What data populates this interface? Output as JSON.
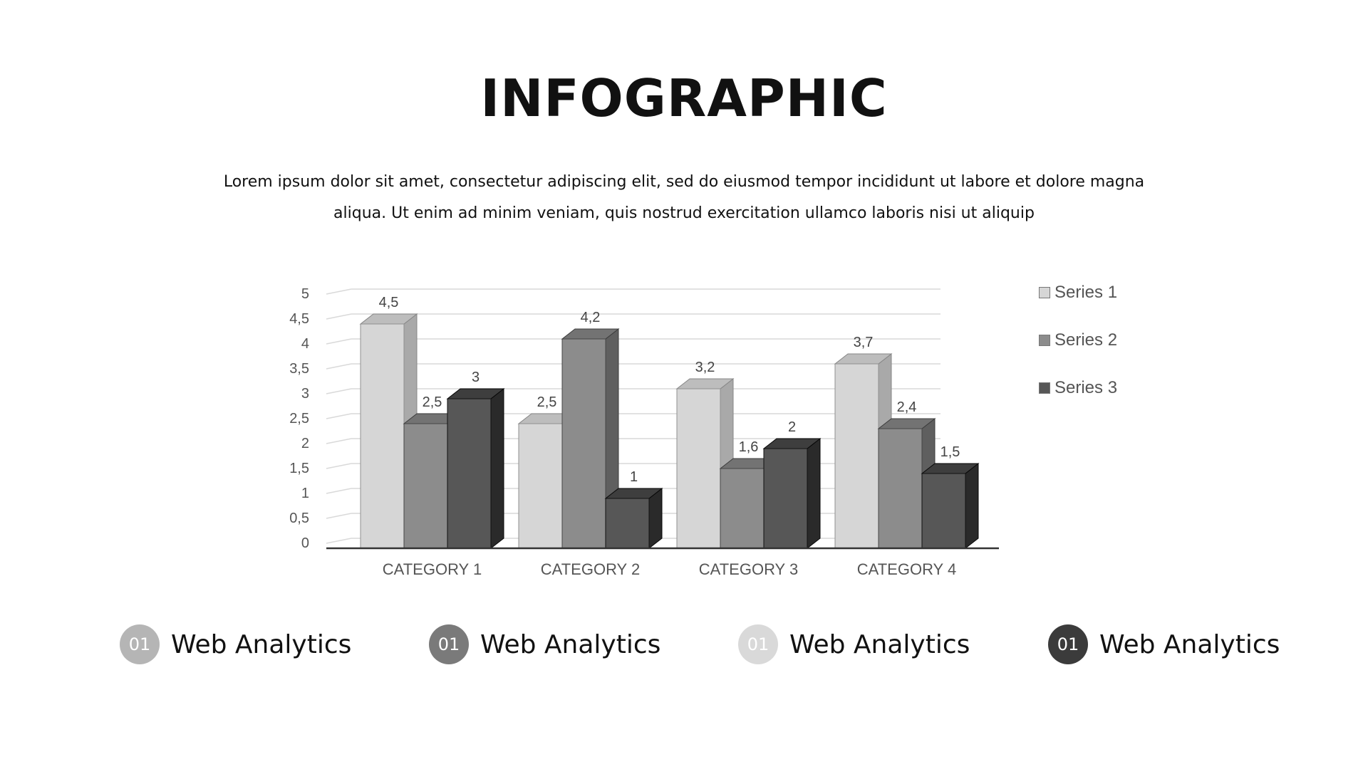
{
  "header": {
    "title": "INFOGRAPHIC",
    "subtitle": "Lorem ipsum dolor sit amet, consectetur adipiscing elit, sed do eiusmod tempor incididunt ut labore et dolore magna aliqua. Ut enim ad minim veniam, quis nostrud exercitation ullamco laboris nisi ut aliquip"
  },
  "chart_data": {
    "type": "bar",
    "style": "3d-clustered-column",
    "categories": [
      "CATEGORY 1",
      "CATEGORY 2",
      "CATEGORY 3",
      "CATEGORY 4"
    ],
    "series": [
      {
        "name": "Series 1",
        "values": [
          4.5,
          2.5,
          3.2,
          3.7
        ],
        "labels": [
          "4,5",
          "2,5",
          "3,2",
          "3,7"
        ],
        "color": "#d6d6d6"
      },
      {
        "name": "Series 2",
        "values": [
          2.5,
          4.2,
          1.6,
          2.4
        ],
        "labels": [
          "2,5",
          "4,2",
          "1,6",
          "2,4"
        ],
        "color": "#8c8c8c"
      },
      {
        "name": "Series 3",
        "values": [
          3,
          1,
          2,
          1.5
        ],
        "labels": [
          "3",
          "1",
          "2",
          "1,5"
        ],
        "color": "#575757"
      }
    ],
    "yticks": [
      "0",
      "0,5",
      "1",
      "1,5",
      "2",
      "2,5",
      "3",
      "3,5",
      "4",
      "4,5",
      "5"
    ],
    "ylim": [
      0,
      5
    ],
    "grid": true,
    "legend_position": "right"
  },
  "features": [
    {
      "number": "01",
      "label": "Web Analytics",
      "color": "#b5b5b5"
    },
    {
      "number": "01",
      "label": "Web Analytics",
      "color": "#7a7a7a"
    },
    {
      "number": "01",
      "label": "Web Analytics",
      "color": "#d9d9d9"
    },
    {
      "number": "01",
      "label": "Web Analytics",
      "color": "#3b3b3b"
    }
  ]
}
